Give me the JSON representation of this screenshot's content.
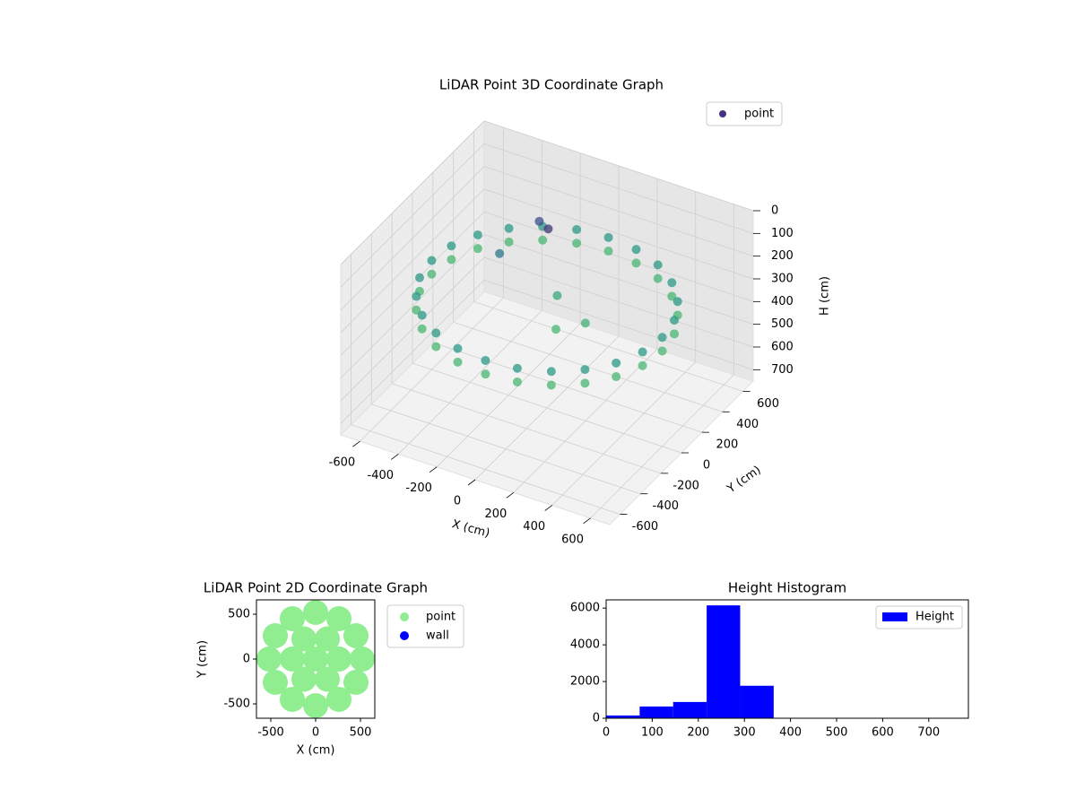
{
  "chart_data": [
    {
      "type": "scatter3d",
      "title": "LiDAR Point 3D Coordinate Graph",
      "xlabel": "X (cm)",
      "ylabel": "Y (cm)",
      "zlabel": "H (cm)",
      "xlim": [
        -700,
        700
      ],
      "ylim": [
        -700,
        700
      ],
      "zlim": [
        750,
        0
      ],
      "xticks": [
        -600,
        -400,
        -200,
        0,
        200,
        400,
        600
      ],
      "yticks": [
        -600,
        -400,
        -200,
        0,
        200,
        400,
        600
      ],
      "zticks": [
        0,
        100,
        200,
        300,
        400,
        500,
        600,
        700
      ],
      "grid": true,
      "legend": "upper right",
      "series": [
        {
          "name": "point",
          "color": "#46327e",
          "x": [
            600,
            580,
            520,
            424,
            300,
            155,
            0,
            -155,
            -300,
            -424,
            -520,
            -580,
            -600,
            -580,
            -520,
            -424,
            -300,
            -155,
            0,
            155,
            300,
            424,
            520,
            580,
            600,
            580,
            520,
            424,
            300,
            155,
            0,
            -155,
            -300,
            -424,
            -520,
            -580,
            -600,
            -580,
            -520,
            -424,
            -300,
            -155,
            0,
            155,
            300,
            424,
            520,
            580,
            -200,
            -100,
            0,
            -300,
            100,
            200
          ],
          "y": [
            0,
            155,
            300,
            424,
            520,
            580,
            600,
            580,
            520,
            424,
            300,
            155,
            0,
            -155,
            -300,
            -424,
            -520,
            -580,
            -600,
            -580,
            -520,
            -424,
            -300,
            -155,
            0,
            155,
            300,
            424,
            520,
            580,
            600,
            580,
            520,
            424,
            300,
            155,
            0,
            -155,
            -300,
            -424,
            -520,
            -580,
            -600,
            -580,
            -520,
            -424,
            -300,
            -155,
            300,
            200,
            100,
            100,
            -100,
            0
          ],
          "z": [
            270,
            270,
            270,
            270,
            270,
            270,
            270,
            270,
            270,
            270,
            270,
            270,
            270,
            270,
            270,
            270,
            270,
            270,
            270,
            270,
            270,
            270,
            270,
            270,
            330,
            330,
            330,
            330,
            330,
            330,
            330,
            330,
            330,
            330,
            330,
            330,
            330,
            330,
            330,
            330,
            330,
            330,
            330,
            330,
            330,
            330,
            330,
            330,
            120,
            80,
            300,
            200,
            330,
            320
          ]
        }
      ]
    },
    {
      "type": "scatter",
      "title": "LiDAR Point 2D Coordinate Graph",
      "xlabel": "X (cm)",
      "ylabel": "Y (cm)",
      "xlim": [
        -660,
        660
      ],
      "ylim": [
        -660,
        660
      ],
      "xticks": [
        -500,
        0,
        500
      ],
      "yticks": [
        -500,
        0,
        500
      ],
      "legend": "outside right",
      "series": [
        {
          "name": "point",
          "color": "#90ee90",
          "x": [
            520,
            450,
            260,
            0,
            -260,
            -450,
            -520,
            -450,
            -260,
            0,
            260,
            450,
            260,
            130,
            -130,
            -260,
            -130,
            130,
            0
          ],
          "y": [
            0,
            260,
            450,
            520,
            450,
            260,
            0,
            -260,
            -450,
            -520,
            -450,
            -260,
            0,
            225,
            225,
            0,
            -225,
            -225,
            0
          ]
        },
        {
          "name": "wall",
          "color": "#0000ff",
          "x": [],
          "y": []
        }
      ]
    },
    {
      "type": "histogram",
      "title": "Height Histogram",
      "bins": [
        0,
        72.7,
        145.4,
        218.1,
        290.8,
        363.5,
        436.2,
        508.9,
        581.6,
        654.3,
        727
      ],
      "values": [
        150,
        640,
        885,
        6150,
        1770,
        0,
        0,
        0,
        0,
        0
      ],
      "xlim": [
        0,
        786
      ],
      "ylim": [
        0,
        6450
      ],
      "xticks": [
        0,
        100,
        200,
        300,
        400,
        500,
        600,
        700
      ],
      "yticks": [
        0,
        2000,
        4000,
        6000
      ],
      "legend": "upper right",
      "series": [
        {
          "name": "Height",
          "color": "#0000ff"
        }
      ]
    }
  ]
}
